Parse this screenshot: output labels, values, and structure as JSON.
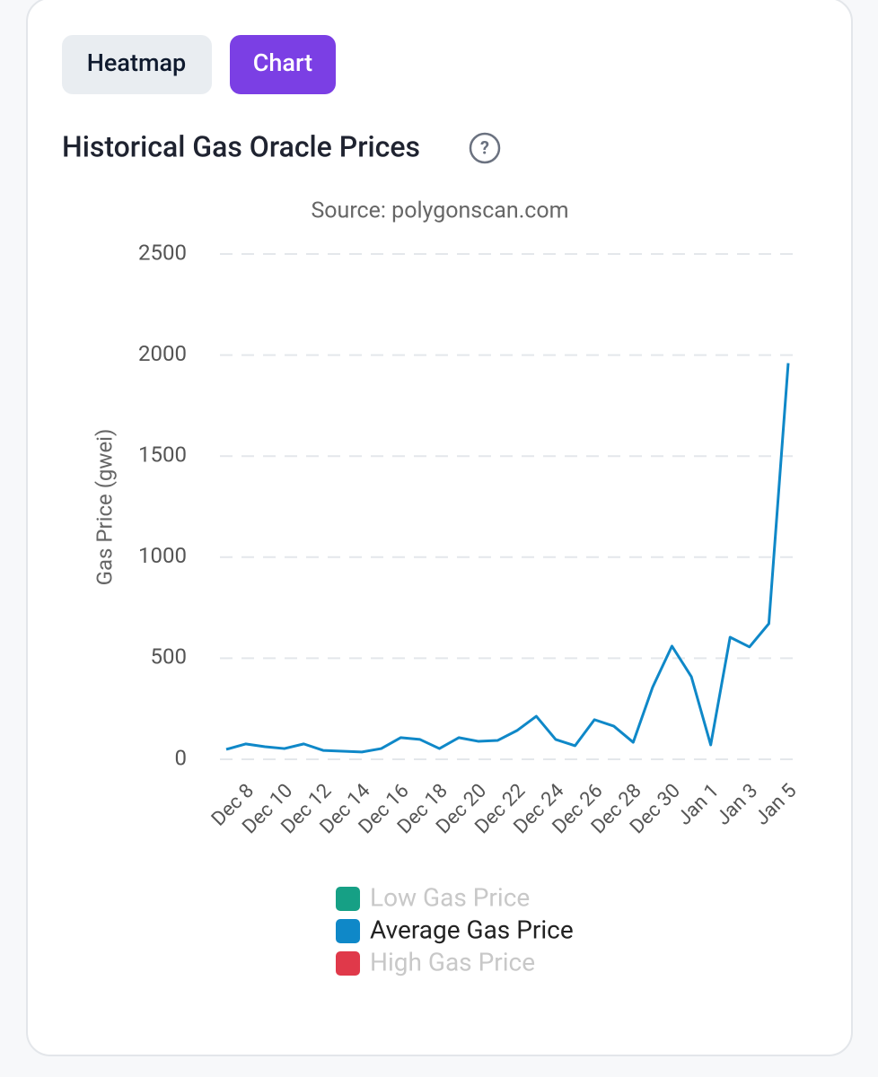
{
  "tabs": [
    "Heatmap",
    "Chart"
  ],
  "chart_data": {
    "type": "line",
    "title": "Historical Gas Oracle Prices",
    "subtitle": "Source: polygonscan.com",
    "y_label": "Gas Price (gwei)",
    "categories": [
      null,
      "Dec 8",
      null,
      "Dec 10",
      null,
      "Dec 12",
      null,
      "Dec 14",
      null,
      "Dec 16",
      null,
      "Dec 18",
      null,
      "Dec 20",
      null,
      "Dec 22",
      null,
      "Dec 24",
      null,
      "Dec 26",
      null,
      "Dec 28",
      null,
      "Dec 30",
      null,
      "Jan 1",
      null,
      "Jan 3",
      null,
      "Jan 5"
    ],
    "series": [
      {
        "name": "Low Gas Price",
        "color": "#16a085",
        "hidden": true
      },
      {
        "name": "Average Gas Price",
        "color": "#0f88c8",
        "values": [
          49,
          76,
          62,
          53,
          76,
          44,
          40,
          36,
          53,
          107,
          98,
          53,
          107,
          89,
          93,
          142,
          213,
          98,
          67,
          196,
          164,
          84,
          356,
          560,
          409,
          71,
          604,
          556,
          671,
          1960
        ]
      },
      {
        "name": "High Gas Price",
        "color": "#e0394a",
        "hidden": true
      }
    ],
    "ylim": [
      0,
      2500
    ],
    "yticks": [
      0,
      500,
      1000,
      1500,
      2000,
      2500
    ],
    "grid": true
  }
}
